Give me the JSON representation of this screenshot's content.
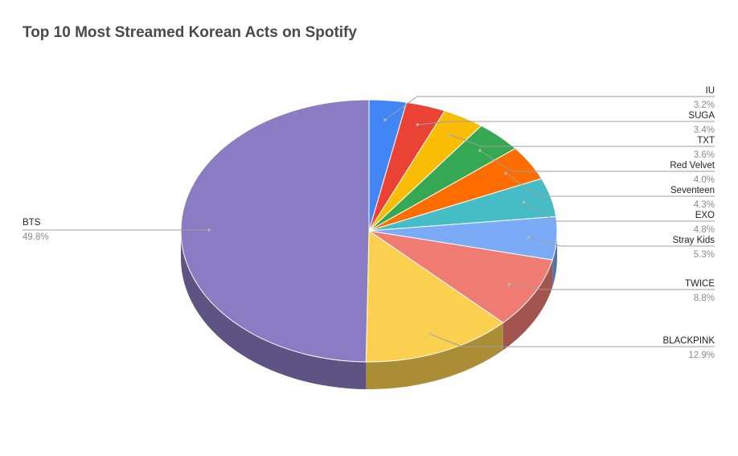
{
  "chart_data": {
    "type": "pie",
    "title": "Top 10 Most Streamed Korean Acts on Spotify",
    "slices": [
      {
        "label": "IU",
        "value": 3.2,
        "pct_label": "3.2%",
        "color": "#4285f4"
      },
      {
        "label": "SUGA",
        "value": 3.4,
        "pct_label": "3.4%",
        "color": "#ea4335"
      },
      {
        "label": "TXT",
        "value": 3.6,
        "pct_label": "3.6%",
        "color": "#fbbc04"
      },
      {
        "label": "Red Velvet",
        "value": 4.0,
        "pct_label": "4.0%",
        "color": "#34a853"
      },
      {
        "label": "Seventeen",
        "value": 4.3,
        "pct_label": "4.3%",
        "color": "#ff6d01"
      },
      {
        "label": "EXO",
        "value": 4.8,
        "pct_label": "4.8%",
        "color": "#46bdc6"
      },
      {
        "label": "Stray Kids",
        "value": 5.3,
        "pct_label": "5.3%",
        "color": "#7baaf7"
      },
      {
        "label": "TWICE",
        "value": 8.8,
        "pct_label": "8.8%",
        "color": "#f07b72"
      },
      {
        "label": "BLACKPINK",
        "value": 12.9,
        "pct_label": "12.9%",
        "color": "#fcd04f"
      },
      {
        "label": "BTS",
        "value": 49.8,
        "pct_label": "49.8%",
        "color": "#8a7cc2"
      }
    ],
    "style": "3d-pie",
    "legend": "none"
  }
}
